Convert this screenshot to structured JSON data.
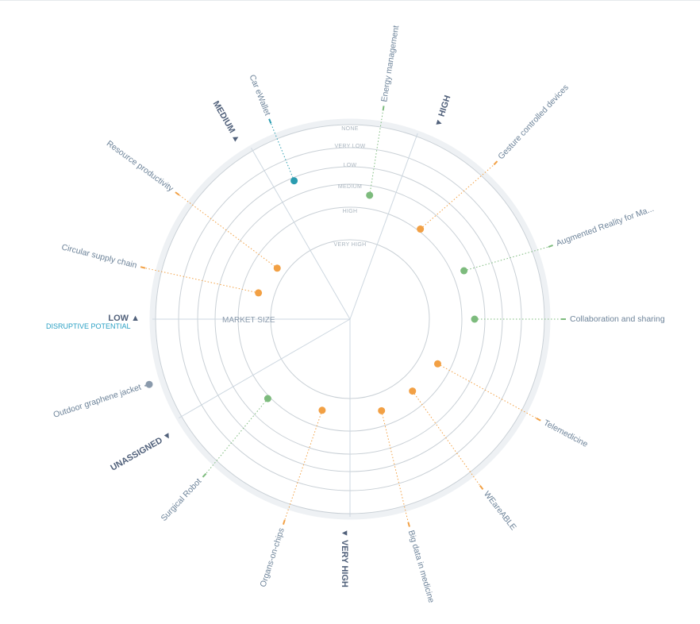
{
  "chart_data": {
    "type": "radar",
    "axis_title": "DISRUPTIVE POTENTIAL",
    "radial_label": "MARKET SIZE",
    "rings": [
      "NONE",
      "VERY LOW",
      "LOW",
      "MEDIUM",
      "HIGH",
      "VERY HIGH"
    ],
    "sectors": [
      {
        "label": "HIGH",
        "arrow": "▼"
      },
      {
        "label": "VERY HIGH",
        "arrow": "▼"
      },
      {
        "label": "UNASSIGNED",
        "arrow": "▼"
      },
      {
        "label": "LOW",
        "arrow": "▲"
      },
      {
        "label": "MEDIUM",
        "arrow": "▲"
      }
    ],
    "items": [
      {
        "label": "Energy management",
        "market_size": "LOW",
        "color": "#7dbb7d"
      },
      {
        "label": "Gesture controlled devices",
        "market_size": "HIGH",
        "color": "#f2a044"
      },
      {
        "label": "Augmented Reality for Ma...",
        "market_size": "HIGH",
        "color": "#7dbb7d"
      },
      {
        "label": "Collaboration and sharing",
        "market_size": "HIGH",
        "color": "#7dbb7d"
      },
      {
        "label": "Telemedicine",
        "market_size": "HIGH",
        "color": "#f2a044"
      },
      {
        "label": "WEareABLE",
        "market_size": "HIGH",
        "color": "#f2a044"
      },
      {
        "label": "Big data in medicine",
        "market_size": "HIGH",
        "color": "#f2a044"
      },
      {
        "label": "Organs-on-chips",
        "market_size": "HIGH",
        "color": "#f2a044"
      },
      {
        "label": "Surgical Robot",
        "market_size": "HIGH",
        "color": "#7dbb7d"
      },
      {
        "label": "Outdoor graphene jacket",
        "market_size": "NONE",
        "color": "#8a9aac"
      },
      {
        "label": "Circular supply chain",
        "market_size": "HIGH",
        "color": "#f2a044"
      },
      {
        "label": "Resource productivity",
        "market_size": "HIGH",
        "color": "#f2a044"
      },
      {
        "label": "Car eWallet",
        "market_size": "LOW",
        "color": "#2a9cb0"
      }
    ]
  }
}
